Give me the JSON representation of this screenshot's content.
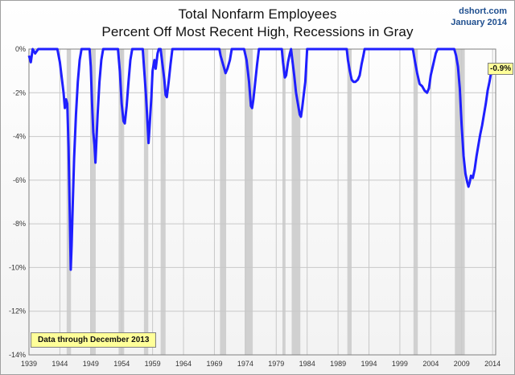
{
  "header": {
    "title_line1": "Total Nonfarm Employees",
    "title_line2": "Percent Off Most Recent High, Recessions in Gray",
    "source_site": "dshort.com",
    "source_date": "January 2014"
  },
  "note": "Data through December 2013",
  "last_value_label": "-0.9%",
  "colors": {
    "line": "#1f1fff",
    "recession": "#d0d0d0",
    "grid": "#c8c8c8",
    "note_bg": "#ffff99"
  },
  "chart_data": {
    "type": "line",
    "title": "Total Nonfarm Employees",
    "subtitle": "Percent Off Most Recent High, Recessions in Gray",
    "xlabel": "",
    "ylabel": "",
    "xlim": [
      1939,
      2014.5
    ],
    "ylim": [
      -14,
      0
    ],
    "grid": true,
    "x_ticks": [
      1939,
      1944,
      1949,
      1954,
      1959,
      1964,
      1969,
      1974,
      1979,
      1984,
      1989,
      1994,
      1999,
      2004,
      2009,
      2014
    ],
    "y_ticks": [
      0,
      -2,
      -4,
      -6,
      -8,
      -10,
      -12,
      -14
    ],
    "y_tick_labels": [
      "0%",
      "-2%",
      "-4%",
      "-6%",
      "-8%",
      "-10%",
      "-12%",
      "-14%"
    ],
    "recessions": [
      [
        1945.1,
        1945.8
      ],
      [
        1948.9,
        1949.8
      ],
      [
        1953.5,
        1954.4
      ],
      [
        1957.6,
        1958.3
      ],
      [
        1960.3,
        1961.1
      ],
      [
        1969.9,
        1970.9
      ],
      [
        1973.9,
        1975.2
      ],
      [
        1980.0,
        1980.5
      ],
      [
        1981.5,
        1982.9
      ],
      [
        1990.5,
        1991.2
      ],
      [
        2001.2,
        2001.9
      ],
      [
        2007.9,
        2009.5
      ]
    ],
    "series": [
      {
        "points": [
          [
            1939.0,
            -0.3
          ],
          [
            1939.3,
            -0.6
          ],
          [
            1939.6,
            0
          ],
          [
            1940.0,
            -0.2
          ],
          [
            1940.5,
            0
          ],
          [
            1941.0,
            0
          ],
          [
            1942.0,
            0
          ],
          [
            1943.0,
            0
          ],
          [
            1943.6,
            0
          ],
          [
            1944.0,
            -0.6
          ],
          [
            1944.3,
            -1.3
          ],
          [
            1944.6,
            -2.0
          ],
          [
            1944.8,
            -2.7
          ],
          [
            1945.0,
            -2.3
          ],
          [
            1945.2,
            -2.5
          ],
          [
            1945.4,
            -4.5
          ],
          [
            1945.6,
            -7.5
          ],
          [
            1945.75,
            -10.1
          ],
          [
            1945.9,
            -9.0
          ],
          [
            1946.1,
            -7.0
          ],
          [
            1946.3,
            -5.0
          ],
          [
            1946.6,
            -3.0
          ],
          [
            1946.9,
            -1.5
          ],
          [
            1947.2,
            -0.5
          ],
          [
            1947.5,
            0
          ],
          [
            1948.0,
            0
          ],
          [
            1948.8,
            0
          ],
          [
            1949.0,
            -0.8
          ],
          [
            1949.2,
            -2.5
          ],
          [
            1949.4,
            -3.8
          ],
          [
            1949.6,
            -4.4
          ],
          [
            1949.75,
            -5.2
          ],
          [
            1949.9,
            -4.3
          ],
          [
            1950.1,
            -3.0
          ],
          [
            1950.4,
            -1.5
          ],
          [
            1950.7,
            -0.5
          ],
          [
            1951.0,
            0
          ],
          [
            1952.0,
            0
          ],
          [
            1953.4,
            0
          ],
          [
            1953.7,
            -1.0
          ],
          [
            1954.0,
            -2.5
          ],
          [
            1954.3,
            -3.3
          ],
          [
            1954.5,
            -3.4
          ],
          [
            1954.8,
            -2.6
          ],
          [
            1955.1,
            -1.5
          ],
          [
            1955.4,
            -0.5
          ],
          [
            1955.7,
            0
          ],
          [
            1956.5,
            0
          ],
          [
            1957.4,
            0
          ],
          [
            1957.6,
            -0.8
          ],
          [
            1957.9,
            -2.0
          ],
          [
            1958.2,
            -3.5
          ],
          [
            1958.35,
            -4.3
          ],
          [
            1958.5,
            -3.6
          ],
          [
            1958.8,
            -2.2
          ],
          [
            1959.0,
            -1.0
          ],
          [
            1959.3,
            -0.5
          ],
          [
            1959.5,
            -0.9
          ],
          [
            1959.8,
            -0.2
          ],
          [
            1960.0,
            0
          ],
          [
            1960.3,
            0
          ],
          [
            1960.6,
            -0.7
          ],
          [
            1960.9,
            -1.4
          ],
          [
            1961.1,
            -2.1
          ],
          [
            1961.3,
            -2.2
          ],
          [
            1961.6,
            -1.5
          ],
          [
            1961.9,
            -0.7
          ],
          [
            1962.2,
            0
          ],
          [
            1965.0,
            0
          ],
          [
            1969.8,
            0
          ],
          [
            1970.0,
            -0.3
          ],
          [
            1970.4,
            -0.7
          ],
          [
            1970.8,
            -1.1
          ],
          [
            1971.1,
            -0.9
          ],
          [
            1971.5,
            -0.5
          ],
          [
            1971.8,
            0
          ],
          [
            1972.5,
            0
          ],
          [
            1973.8,
            0
          ],
          [
            1974.2,
            -0.5
          ],
          [
            1974.6,
            -1.5
          ],
          [
            1974.9,
            -2.6
          ],
          [
            1975.1,
            -2.7
          ],
          [
            1975.3,
            -2.3
          ],
          [
            1975.6,
            -1.5
          ],
          [
            1975.9,
            -0.7
          ],
          [
            1976.2,
            0
          ],
          [
            1978.0,
            0
          ],
          [
            1979.9,
            0
          ],
          [
            1980.1,
            -0.6
          ],
          [
            1980.4,
            -1.3
          ],
          [
            1980.6,
            -1.2
          ],
          [
            1980.9,
            -0.6
          ],
          [
            1981.2,
            -0.2
          ],
          [
            1981.4,
            0
          ],
          [
            1981.6,
            -0.5
          ],
          [
            1981.9,
            -1.2
          ],
          [
            1982.2,
            -2.0
          ],
          [
            1982.5,
            -2.5
          ],
          [
            1982.8,
            -3.0
          ],
          [
            1983.0,
            -3.1
          ],
          [
            1983.2,
            -2.7
          ],
          [
            1983.4,
            -2.2
          ],
          [
            1983.7,
            -1.5
          ],
          [
            1984.0,
            0
          ],
          [
            1985.0,
            0
          ],
          [
            1989.0,
            0
          ],
          [
            1990.4,
            0
          ],
          [
            1990.6,
            -0.5
          ],
          [
            1990.9,
            -1.0
          ],
          [
            1991.2,
            -1.4
          ],
          [
            1991.5,
            -1.5
          ],
          [
            1991.8,
            -1.5
          ],
          [
            1992.2,
            -1.4
          ],
          [
            1992.5,
            -1.2
          ],
          [
            1992.8,
            -0.7
          ],
          [
            1993.1,
            -0.3
          ],
          [
            1993.3,
            0
          ],
          [
            1996.0,
            0
          ],
          [
            2000.0,
            0
          ],
          [
            2001.1,
            0
          ],
          [
            2001.4,
            -0.5
          ],
          [
            2001.8,
            -1.1
          ],
          [
            2002.2,
            -1.6
          ],
          [
            2002.6,
            -1.7
          ],
          [
            2003.0,
            -1.9
          ],
          [
            2003.4,
            -2.0
          ],
          [
            2003.7,
            -1.8
          ],
          [
            2004.0,
            -1.2
          ],
          [
            2004.4,
            -0.7
          ],
          [
            2004.8,
            -0.2
          ],
          [
            2005.1,
            0
          ],
          [
            2006.0,
            0
          ],
          [
            2007.8,
            0
          ],
          [
            2008.1,
            -0.3
          ],
          [
            2008.4,
            -0.8
          ],
          [
            2008.7,
            -1.8
          ],
          [
            2009.0,
            -3.5
          ],
          [
            2009.3,
            -4.9
          ],
          [
            2009.6,
            -5.7
          ],
          [
            2009.9,
            -6.1
          ],
          [
            2010.1,
            -6.3
          ],
          [
            2010.3,
            -6.1
          ],
          [
            2010.5,
            -5.8
          ],
          [
            2010.8,
            -5.9
          ],
          [
            2011.1,
            -5.5
          ],
          [
            2011.4,
            -4.9
          ],
          [
            2011.7,
            -4.4
          ],
          [
            2012.0,
            -3.9
          ],
          [
            2012.3,
            -3.5
          ],
          [
            2012.6,
            -3.0
          ],
          [
            2012.9,
            -2.5
          ],
          [
            2013.2,
            -1.9
          ],
          [
            2013.5,
            -1.5
          ],
          [
            2013.75,
            -1.1
          ],
          [
            2013.95,
            -0.9
          ]
        ]
      }
    ]
  }
}
